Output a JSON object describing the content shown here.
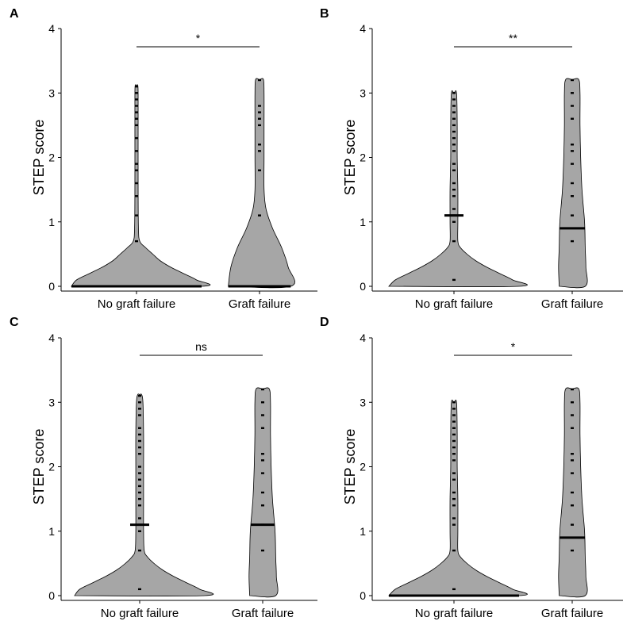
{
  "styles": {
    "violin_fill": "#a6a6a6",
    "violin_stroke": "#000000",
    "point_color": "#000000",
    "median_color": "#000000"
  },
  "chart_data": [
    {
      "type": "violin",
      "panel": "A",
      "ylabel": "STEP score",
      "ylim": [
        0,
        4
      ],
      "yticks": [
        0,
        1,
        2,
        3,
        4
      ],
      "categories": [
        "No graft failure",
        "Graft failure"
      ],
      "significance": "*",
      "groups": [
        {
          "median": 0,
          "max": 3.12,
          "density": [
            [
              0,
              1.0
            ],
            [
              0.1,
              0.92
            ],
            [
              0.2,
              0.72
            ],
            [
              0.3,
              0.52
            ],
            [
              0.4,
              0.36
            ],
            [
              0.5,
              0.25
            ],
            [
              0.6,
              0.14
            ],
            [
              0.7,
              0.05
            ],
            [
              0.9,
              0.03
            ],
            [
              1.5,
              0.025
            ],
            [
              2.5,
              0.025
            ],
            [
              3.0,
              0.025
            ],
            [
              3.12,
              0.02
            ]
          ],
          "points": [
            0.7,
            1.1,
            1.4,
            1.6,
            1.8,
            1.9,
            2.1,
            2.3,
            2.5,
            2.6,
            2.7,
            2.8,
            2.9,
            3.0,
            3.1
          ]
        },
        {
          "median": 0,
          "max": 3.21,
          "density": [
            [
              0,
              0.48
            ],
            [
              0.3,
              0.44
            ],
            [
              0.6,
              0.34
            ],
            [
              0.9,
              0.2
            ],
            [
              1.2,
              0.1
            ],
            [
              1.5,
              0.07
            ],
            [
              2.0,
              0.07
            ],
            [
              2.5,
              0.07
            ],
            [
              3.0,
              0.07
            ],
            [
              3.21,
              0.06
            ]
          ],
          "points": [
            1.1,
            1.8,
            2.1,
            2.2,
            2.5,
            2.6,
            2.7,
            2.8,
            3.2
          ]
        }
      ]
    },
    {
      "type": "violin",
      "panel": "B",
      "ylabel": "STEP score",
      "ylim": [
        0,
        4
      ],
      "yticks": [
        0,
        1,
        2,
        3,
        4
      ],
      "categories": [
        "No graft failure",
        "Graft failure"
      ],
      "significance": "**",
      "groups": [
        {
          "median": 1.1,
          "max": 3.0,
          "density": [
            [
              0,
              1.0
            ],
            [
              0.1,
              0.9
            ],
            [
              0.2,
              0.7
            ],
            [
              0.3,
              0.5
            ],
            [
              0.4,
              0.33
            ],
            [
              0.5,
              0.2
            ],
            [
              0.6,
              0.1
            ],
            [
              0.7,
              0.06
            ],
            [
              1.0,
              0.06
            ],
            [
              1.5,
              0.06
            ],
            [
              2.0,
              0.05
            ],
            [
              2.5,
              0.05
            ],
            [
              3.0,
              0.04
            ]
          ],
          "points": [
            0.1,
            0.7,
            1.0,
            1.1,
            1.2,
            1.4,
            1.5,
            1.6,
            1.8,
            1.9,
            2.1,
            2.2,
            2.3,
            2.4,
            2.5,
            2.6,
            2.7,
            2.8,
            2.9,
            3.0
          ]
        },
        {
          "median": 0.9,
          "max": 3.21,
          "density": [
            [
              0,
              0.2
            ],
            [
              0.3,
              0.21
            ],
            [
              0.6,
              0.2
            ],
            [
              1.0,
              0.19
            ],
            [
              1.5,
              0.15
            ],
            [
              2.0,
              0.13
            ],
            [
              2.5,
              0.12
            ],
            [
              3.0,
              0.12
            ],
            [
              3.21,
              0.1
            ]
          ],
          "points": [
            0.7,
            1.1,
            1.4,
            1.6,
            1.9,
            2.1,
            2.2,
            2.6,
            2.8,
            3.0,
            3.2
          ]
        }
      ]
    },
    {
      "type": "violin",
      "panel": "C",
      "ylabel": "STEP score",
      "ylim": [
        0,
        4
      ],
      "yticks": [
        0,
        1,
        2,
        3,
        4
      ],
      "categories": [
        "No graft failure",
        "Graft failure"
      ],
      "significance": "ns",
      "groups": [
        {
          "median": 1.1,
          "max": 3.12,
          "density": [
            [
              0,
              1.0
            ],
            [
              0.1,
              0.92
            ],
            [
              0.2,
              0.72
            ],
            [
              0.3,
              0.52
            ],
            [
              0.4,
              0.35
            ],
            [
              0.5,
              0.22
            ],
            [
              0.6,
              0.12
            ],
            [
              0.7,
              0.07
            ],
            [
              1.0,
              0.06
            ],
            [
              1.5,
              0.06
            ],
            [
              2.0,
              0.06
            ],
            [
              2.5,
              0.06
            ],
            [
              3.0,
              0.05
            ],
            [
              3.12,
              0.03
            ]
          ],
          "points": [
            0.1,
            0.7,
            1.0,
            1.1,
            1.2,
            1.4,
            1.5,
            1.6,
            1.7,
            1.8,
            1.9,
            2.0,
            2.2,
            2.3,
            2.4,
            2.5,
            2.6,
            2.8,
            2.9,
            3.0,
            3.1
          ]
        },
        {
          "median": 1.1,
          "max": 3.21,
          "density": [
            [
              0,
              0.2
            ],
            [
              0.3,
              0.21
            ],
            [
              0.6,
              0.2
            ],
            [
              1.0,
              0.19
            ],
            [
              1.5,
              0.15
            ],
            [
              2.0,
              0.13
            ],
            [
              2.5,
              0.12
            ],
            [
              3.0,
              0.12
            ],
            [
              3.21,
              0.1
            ]
          ],
          "points": [
            0.7,
            1.1,
            1.4,
            1.6,
            1.9,
            2.1,
            2.2,
            2.6,
            2.8,
            3.0,
            3.2
          ]
        }
      ]
    },
    {
      "type": "violin",
      "panel": "D",
      "ylabel": "STEP score",
      "ylim": [
        0,
        4
      ],
      "yticks": [
        0,
        1,
        2,
        3,
        4
      ],
      "categories": [
        "No graft failure",
        "Graft failure"
      ],
      "significance": "*",
      "groups": [
        {
          "median": 0,
          "max": 3.0,
          "density": [
            [
              0,
              1.0
            ],
            [
              0.1,
              0.9
            ],
            [
              0.2,
              0.7
            ],
            [
              0.3,
              0.5
            ],
            [
              0.4,
              0.33
            ],
            [
              0.5,
              0.2
            ],
            [
              0.6,
              0.1
            ],
            [
              0.7,
              0.06
            ],
            [
              1.0,
              0.06
            ],
            [
              1.5,
              0.06
            ],
            [
              2.0,
              0.05
            ],
            [
              2.5,
              0.05
            ],
            [
              3.0,
              0.04
            ]
          ],
          "points": [
            0.1,
            0.7,
            1.1,
            1.2,
            1.4,
            1.5,
            1.6,
            1.8,
            1.9,
            2.1,
            2.2,
            2.3,
            2.4,
            2.5,
            2.6,
            2.7,
            2.8,
            2.9,
            3.0
          ]
        },
        {
          "median": 0.9,
          "max": 3.21,
          "density": [
            [
              0,
              0.2
            ],
            [
              0.3,
              0.21
            ],
            [
              0.6,
              0.2
            ],
            [
              1.0,
              0.19
            ],
            [
              1.5,
              0.15
            ],
            [
              2.0,
              0.13
            ],
            [
              2.5,
              0.12
            ],
            [
              3.0,
              0.12
            ],
            [
              3.21,
              0.1
            ]
          ],
          "points": [
            0.7,
            1.1,
            1.4,
            1.6,
            1.9,
            2.1,
            2.2,
            2.6,
            2.8,
            3.0,
            3.2
          ]
        }
      ]
    }
  ]
}
